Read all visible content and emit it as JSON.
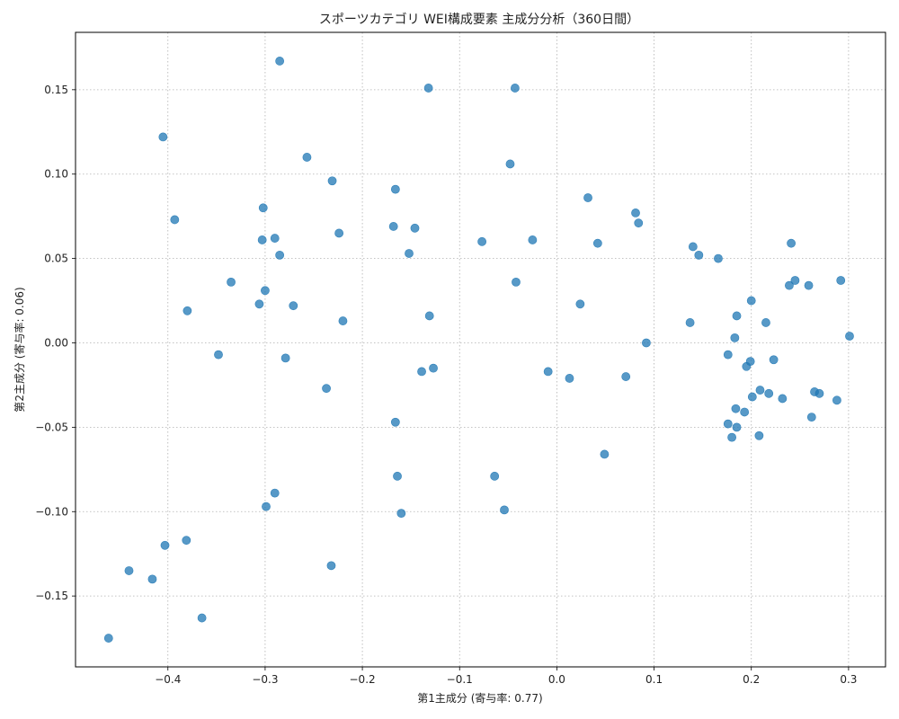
{
  "chart_data": {
    "type": "scatter",
    "title": "スポーツカテゴリ WEI構成要素 主成分分析（360日間）",
    "xlabel": "第1主成分 (寄与率: 0.77)",
    "ylabel": "第2主成分 (寄与率: 0.06)",
    "xlim": [
      -0.495,
      0.338
    ],
    "ylim": [
      -0.192,
      0.184
    ],
    "xticks": [
      -0.4,
      -0.3,
      -0.2,
      -0.1,
      0.0,
      0.1,
      0.2,
      0.3
    ],
    "xtick_labels": [
      "−0.4",
      "−0.3",
      "−0.2",
      "−0.1",
      "0.0",
      "0.1",
      "0.2",
      "0.3"
    ],
    "yticks": [
      -0.15,
      -0.1,
      -0.05,
      0.0,
      0.05,
      0.1,
      0.15
    ],
    "ytick_labels": [
      "−0.15",
      "−0.10",
      "−0.05",
      "0.00",
      "0.05",
      "0.10",
      "0.15"
    ],
    "grid": true,
    "color": "#1f77b4",
    "points": [
      [
        -0.285,
        0.167
      ],
      [
        -0.132,
        0.151
      ],
      [
        -0.043,
        0.151
      ],
      [
        -0.405,
        0.122
      ],
      [
        -0.257,
        0.11
      ],
      [
        -0.048,
        0.106
      ],
      [
        -0.231,
        0.096
      ],
      [
        -0.166,
        0.091
      ],
      [
        0.032,
        0.086
      ],
      [
        -0.302,
        0.08
      ],
      [
        0.081,
        0.077
      ],
      [
        -0.393,
        0.073
      ],
      [
        0.084,
        0.071
      ],
      [
        -0.168,
        0.069
      ],
      [
        -0.146,
        0.068
      ],
      [
        -0.224,
        0.065
      ],
      [
        -0.29,
        0.062
      ],
      [
        -0.303,
        0.061
      ],
      [
        -0.077,
        0.06
      ],
      [
        -0.025,
        0.061
      ],
      [
        0.042,
        0.059
      ],
      [
        0.241,
        0.059
      ],
      [
        0.14,
        0.057
      ],
      [
        -0.152,
        0.053
      ],
      [
        -0.285,
        0.052
      ],
      [
        0.146,
        0.052
      ],
      [
        0.166,
        0.05
      ],
      [
        -0.335,
        0.036
      ],
      [
        -0.042,
        0.036
      ],
      [
        0.245,
        0.037
      ],
      [
        0.292,
        0.037
      ],
      [
        0.259,
        0.034
      ],
      [
        0.239,
        0.034
      ],
      [
        -0.3,
        0.031
      ],
      [
        0.2,
        0.025
      ],
      [
        -0.306,
        0.023
      ],
      [
        -0.271,
        0.022
      ],
      [
        0.024,
        0.023
      ],
      [
        -0.38,
        0.019
      ],
      [
        0.185,
        0.016
      ],
      [
        -0.131,
        0.016
      ],
      [
        -0.22,
        0.013
      ],
      [
        0.137,
        0.012
      ],
      [
        0.215,
        0.012
      ],
      [
        0.301,
        0.004
      ],
      [
        0.183,
        0.003
      ],
      [
        0.092,
        0.0
      ],
      [
        -0.348,
        -0.007
      ],
      [
        -0.279,
        -0.009
      ],
      [
        0.176,
        -0.007
      ],
      [
        0.199,
        -0.011
      ],
      [
        0.223,
        -0.01
      ],
      [
        0.195,
        -0.014
      ],
      [
        -0.139,
        -0.017
      ],
      [
        -0.009,
        -0.017
      ],
      [
        -0.127,
        -0.015
      ],
      [
        0.013,
        -0.021
      ],
      [
        0.071,
        -0.02
      ],
      [
        -0.237,
        -0.027
      ],
      [
        0.209,
        -0.028
      ],
      [
        0.218,
        -0.03
      ],
      [
        0.265,
        -0.029
      ],
      [
        0.27,
        -0.03
      ],
      [
        0.201,
        -0.032
      ],
      [
        0.232,
        -0.033
      ],
      [
        0.288,
        -0.034
      ],
      [
        0.184,
        -0.039
      ],
      [
        0.193,
        -0.041
      ],
      [
        0.262,
        -0.044
      ],
      [
        -0.166,
        -0.047
      ],
      [
        0.176,
        -0.048
      ],
      [
        0.185,
        -0.05
      ],
      [
        0.208,
        -0.055
      ],
      [
        0.18,
        -0.056
      ],
      [
        0.049,
        -0.066
      ],
      [
        -0.164,
        -0.079
      ],
      [
        -0.064,
        -0.079
      ],
      [
        -0.29,
        -0.089
      ],
      [
        -0.299,
        -0.097
      ],
      [
        -0.054,
        -0.099
      ],
      [
        -0.16,
        -0.101
      ],
      [
        -0.381,
        -0.117
      ],
      [
        -0.403,
        -0.12
      ],
      [
        -0.232,
        -0.132
      ],
      [
        -0.44,
        -0.135
      ],
      [
        -0.416,
        -0.14
      ],
      [
        -0.365,
        -0.163
      ],
      [
        -0.461,
        -0.175
      ]
    ]
  }
}
